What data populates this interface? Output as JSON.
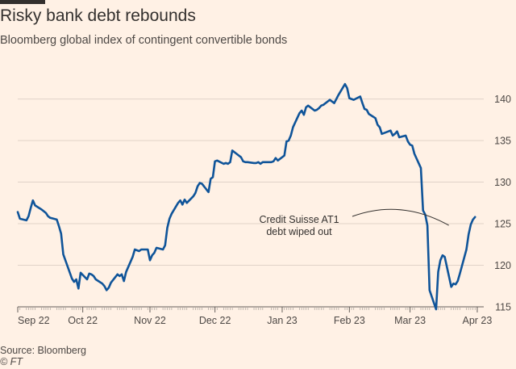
{
  "header": {
    "title": "Risky bank debt rebounds",
    "subtitle": "Bloomberg global index of contingent convertible bonds"
  },
  "footer": {
    "source": "Source: Bloomberg",
    "credit": "© FT"
  },
  "colors": {
    "background": "#fff1e5",
    "line": "#0f5499",
    "text": "#33302e",
    "grid": "#e0d3c8",
    "axis": "#66605c"
  },
  "chart_data": {
    "type": "line",
    "title": "Risky bank debt rebounds",
    "subtitle": "Bloomberg global index of contingent convertible bonds",
    "xlabel": "",
    "ylabel": "",
    "ylim": [
      115,
      142
    ],
    "yticks": [
      115,
      120,
      125,
      130,
      135,
      140
    ],
    "xlim": [
      "2022-09-01",
      "2023-04-04"
    ],
    "xticks": [
      {
        "date": "2022-09-01",
        "label": "Sep 22"
      },
      {
        "date": "2022-10-01",
        "label": "Oct 22"
      },
      {
        "date": "2022-11-01",
        "label": "Nov 22"
      },
      {
        "date": "2022-12-01",
        "label": "Dec 22"
      },
      {
        "date": "2023-01-01",
        "label": "Jan 23"
      },
      {
        "date": "2023-02-01",
        "label": "Feb 23"
      },
      {
        "date": "2023-03-01",
        "label": "Mar 23"
      },
      {
        "date": "2023-04-01",
        "label": "Apr 23"
      }
    ],
    "grid": true,
    "y_axis_side": "right",
    "annotations": [
      {
        "lines": [
          "Credit Suisse AT1",
          "debt wiped out"
        ],
        "target_date": "2023-03-20",
        "target_value": 124.8
      }
    ],
    "series": [
      {
        "points": [
          [
            "2022-09-01",
            126.4
          ],
          [
            "2022-09-02",
            125.6
          ],
          [
            "2022-09-05",
            125.4
          ],
          [
            "2022-09-06",
            125.9
          ],
          [
            "2022-09-07",
            126.9
          ],
          [
            "2022-09-08",
            127.8
          ],
          [
            "2022-09-09",
            127.2
          ],
          [
            "2022-09-12",
            126.7
          ],
          [
            "2022-09-13",
            126.5
          ],
          [
            "2022-09-14",
            126.3
          ],
          [
            "2022-09-15",
            125.9
          ],
          [
            "2022-09-16",
            125.7
          ],
          [
            "2022-09-19",
            125.5
          ],
          [
            "2022-09-20",
            124.7
          ],
          [
            "2022-09-21",
            123.8
          ],
          [
            "2022-09-22",
            121.3
          ],
          [
            "2022-09-23",
            120.6
          ],
          [
            "2022-09-26",
            118.4
          ],
          [
            "2022-09-27",
            118.0
          ],
          [
            "2022-09-28",
            118.3
          ],
          [
            "2022-09-29",
            117.2
          ],
          [
            "2022-09-30",
            119.1
          ],
          [
            "2022-10-03",
            118.3
          ],
          [
            "2022-10-04",
            119.0
          ],
          [
            "2022-10-05",
            118.9
          ],
          [
            "2022-10-06",
            118.7
          ],
          [
            "2022-10-07",
            118.3
          ],
          [
            "2022-10-10",
            117.8
          ],
          [
            "2022-10-11",
            117.5
          ],
          [
            "2022-10-12",
            117.0
          ],
          [
            "2022-10-13",
            117.3
          ],
          [
            "2022-10-14",
            117.9
          ],
          [
            "2022-10-17",
            118.9
          ],
          [
            "2022-10-18",
            118.7
          ],
          [
            "2022-10-19",
            118.9
          ],
          [
            "2022-10-20",
            118.1
          ],
          [
            "2022-10-21",
            119.2
          ],
          [
            "2022-10-24",
            121.0
          ],
          [
            "2022-10-25",
            121.9
          ],
          [
            "2022-10-26",
            121.8
          ],
          [
            "2022-10-27",
            121.7
          ],
          [
            "2022-10-28",
            121.9
          ],
          [
            "2022-10-31",
            121.9
          ],
          [
            "2022-11-01",
            120.6
          ],
          [
            "2022-11-02",
            121.2
          ],
          [
            "2022-11-03",
            121.5
          ],
          [
            "2022-11-04",
            122.1
          ],
          [
            "2022-11-07",
            121.9
          ],
          [
            "2022-11-08",
            122.4
          ],
          [
            "2022-11-09",
            124.5
          ],
          [
            "2022-11-10",
            125.6
          ],
          [
            "2022-11-11",
            126.2
          ],
          [
            "2022-11-14",
            127.5
          ],
          [
            "2022-11-15",
            127.8
          ],
          [
            "2022-11-16",
            127.3
          ],
          [
            "2022-11-17",
            127.9
          ],
          [
            "2022-11-18",
            127.5
          ],
          [
            "2022-11-21",
            128.3
          ],
          [
            "2022-11-22",
            128.7
          ],
          [
            "2022-11-23",
            129.5
          ],
          [
            "2022-11-24",
            129.9
          ],
          [
            "2022-11-25",
            129.8
          ],
          [
            "2022-11-28",
            128.8
          ],
          [
            "2022-11-29",
            130.4
          ],
          [
            "2022-11-30",
            130.6
          ],
          [
            "2022-12-01",
            132.5
          ],
          [
            "2022-12-02",
            132.6
          ],
          [
            "2022-12-05",
            132.2
          ],
          [
            "2022-12-06",
            132.3
          ],
          [
            "2022-12-07",
            132.2
          ],
          [
            "2022-12-08",
            132.4
          ],
          [
            "2022-12-09",
            133.8
          ],
          [
            "2022-12-12",
            133.2
          ],
          [
            "2022-12-13",
            133.0
          ],
          [
            "2022-12-14",
            132.5
          ],
          [
            "2022-12-15",
            132.4
          ],
          [
            "2022-12-16",
            132.4
          ],
          [
            "2022-12-19",
            132.3
          ],
          [
            "2022-12-20",
            132.3
          ],
          [
            "2022-12-21",
            132.4
          ],
          [
            "2022-12-22",
            132.2
          ],
          [
            "2022-12-23",
            132.4
          ],
          [
            "2022-12-27",
            132.4
          ],
          [
            "2022-12-28",
            132.5
          ],
          [
            "2022-12-29",
            132.9
          ],
          [
            "2022-12-30",
            132.6
          ],
          [
            "2023-01-02",
            133.2
          ],
          [
            "2023-01-03",
            134.9
          ],
          [
            "2023-01-04",
            135.0
          ],
          [
            "2023-01-05",
            135.6
          ],
          [
            "2023-01-06",
            136.6
          ],
          [
            "2023-01-09",
            138.3
          ],
          [
            "2023-01-10",
            138.6
          ],
          [
            "2023-01-11",
            138.1
          ],
          [
            "2023-01-12",
            139.0
          ],
          [
            "2023-01-13",
            139.2
          ],
          [
            "2023-01-16",
            138.6
          ],
          [
            "2023-01-17",
            138.7
          ],
          [
            "2023-01-18",
            138.9
          ],
          [
            "2023-01-19",
            139.2
          ],
          [
            "2023-01-20",
            139.3
          ],
          [
            "2023-01-23",
            139.9
          ],
          [
            "2023-01-24",
            139.7
          ],
          [
            "2023-01-25",
            139.5
          ],
          [
            "2023-01-26",
            140.0
          ],
          [
            "2023-01-27",
            140.5
          ],
          [
            "2023-01-30",
            141.8
          ],
          [
            "2023-01-31",
            141.3
          ],
          [
            "2023-02-01",
            140.1
          ],
          [
            "2023-02-02",
            140.0
          ],
          [
            "2023-02-03",
            139.9
          ],
          [
            "2023-02-06",
            140.3
          ],
          [
            "2023-02-07",
            139.5
          ],
          [
            "2023-02-08",
            138.8
          ],
          [
            "2023-02-09",
            138.7
          ],
          [
            "2023-02-10",
            138.2
          ],
          [
            "2023-02-13",
            137.7
          ],
          [
            "2023-02-14",
            136.9
          ],
          [
            "2023-02-15",
            136.6
          ],
          [
            "2023-02-16",
            135.8
          ],
          [
            "2023-02-17",
            135.9
          ],
          [
            "2023-02-20",
            136.2
          ],
          [
            "2023-02-21",
            135.6
          ],
          [
            "2023-02-22",
            135.8
          ],
          [
            "2023-02-23",
            136.1
          ],
          [
            "2023-02-24",
            135.4
          ],
          [
            "2023-02-27",
            135.6
          ],
          [
            "2023-02-28",
            134.9
          ],
          [
            "2023-03-01",
            134.5
          ],
          [
            "2023-03-02",
            134.4
          ],
          [
            "2023-03-03",
            133.4
          ],
          [
            "2023-03-06",
            131.7
          ],
          [
            "2023-03-07",
            126.6
          ],
          [
            "2023-03-08",
            126.1
          ],
          [
            "2023-03-09",
            124.8
          ],
          [
            "2023-03-10",
            117.0
          ],
          [
            "2023-03-13",
            114.7
          ],
          [
            "2023-03-14",
            119.2
          ],
          [
            "2023-03-15",
            120.6
          ],
          [
            "2023-03-16",
            121.2
          ],
          [
            "2023-03-17",
            121.0
          ],
          [
            "2023-03-20",
            117.4
          ],
          [
            "2023-03-21",
            117.8
          ],
          [
            "2023-03-22",
            117.7
          ],
          [
            "2023-03-23",
            118.1
          ],
          [
            "2023-03-24",
            119.0
          ],
          [
            "2023-03-27",
            121.9
          ],
          [
            "2023-03-28",
            123.7
          ],
          [
            "2023-03-29",
            124.9
          ],
          [
            "2023-03-30",
            125.5
          ],
          [
            "2023-03-31",
            125.8
          ]
        ]
      }
    ]
  }
}
